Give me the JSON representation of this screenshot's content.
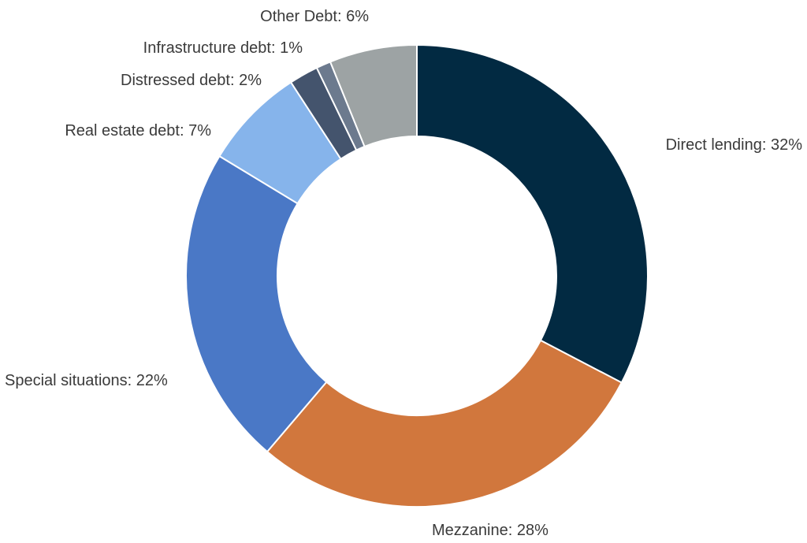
{
  "chart_data": {
    "type": "pie",
    "variant": "donut",
    "legend": "none",
    "slices": [
      {
        "label": "Direct lending: 32%",
        "name": "Direct lending",
        "value": 32,
        "color": "#022a42"
      },
      {
        "label": "Mezzanine: 28%",
        "name": "Mezzanine",
        "value": 28,
        "color": "#d1773d"
      },
      {
        "label": "Special situations: 22%",
        "name": "Special situations",
        "value": 22,
        "color": "#4a78c6"
      },
      {
        "label": "Real estate debt: 7%",
        "name": "Real estate debt",
        "value": 7,
        "color": "#86b4eb"
      },
      {
        "label": "Distressed debt: 2%",
        "name": "Distressed debt",
        "value": 2,
        "color": "#44546d"
      },
      {
        "label": "Infrastructure debt: 1%",
        "name": "Infrastructure debt",
        "value": 1,
        "color": "#6c7a8e"
      },
      {
        "label": "Other Debt: 6%",
        "name": "Other Debt",
        "value": 6,
        "color": "#9da3a4"
      }
    ]
  }
}
